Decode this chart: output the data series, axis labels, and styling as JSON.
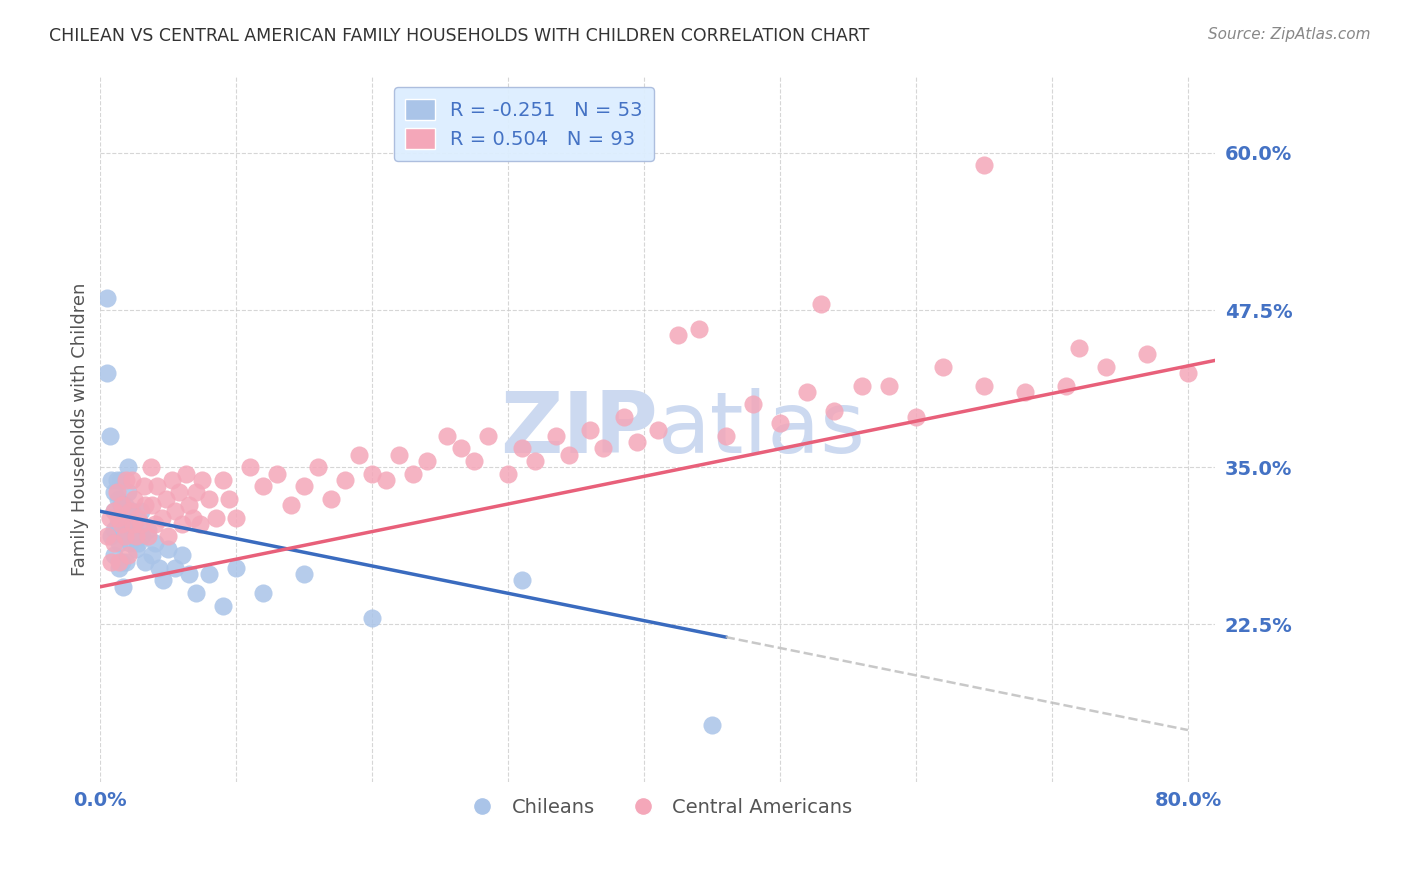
{
  "title": "CHILEAN VS CENTRAL AMERICAN FAMILY HOUSEHOLDS WITH CHILDREN CORRELATION CHART",
  "source": "Source: ZipAtlas.com",
  "ylabel": "Family Households with Children",
  "xlim": [
    0.0,
    0.82
  ],
  "ylim": [
    0.1,
    0.66
  ],
  "yticks": [
    0.225,
    0.35,
    0.475,
    0.6
  ],
  "ytick_labels": [
    "22.5%",
    "35.0%",
    "47.5%",
    "60.0%"
  ],
  "xtick_labels_left": "0.0%",
  "xtick_labels_right": "80.0%",
  "chileans_R": -0.251,
  "chileans_N": 53,
  "central_americans_R": 0.504,
  "central_americans_N": 93,
  "chilean_color": "#aac4e8",
  "central_american_color": "#f4a7b9",
  "chilean_line_color": "#3a6bbf",
  "central_american_line_color": "#e8607a",
  "dashed_line_color": "#bbbbbb",
  "background_color": "#ffffff",
  "grid_color": "#cccccc",
  "tick_label_color": "#4472c4",
  "title_color": "#333333",
  "source_color": "#888888",
  "watermark_color": "#ccd9f0",
  "legend_box_color": "#ddeeff",
  "legend_edge_color": "#aabbdd",
  "ylabel_color": "#555555",
  "bottom_legend_label_color": "#555555",
  "ca_bottom_label_color": "#e8607a",
  "ch_line_xstart": 0.0,
  "ch_line_xend": 0.46,
  "ch_dash_xend": 0.8,
  "ca_line_xstart": 0.0,
  "ca_line_xend": 0.82,
  "ch_line_ystart": 0.315,
  "ch_line_yend": 0.215,
  "ca_line_ystart": 0.255,
  "ca_line_yend": 0.435,
  "chileans_x": [
    0.005,
    0.005,
    0.007,
    0.008,
    0.008,
    0.01,
    0.01,
    0.01,
    0.01,
    0.012,
    0.013,
    0.013,
    0.014,
    0.014,
    0.015,
    0.015,
    0.016,
    0.016,
    0.017,
    0.018,
    0.018,
    0.019,
    0.02,
    0.02,
    0.021,
    0.022,
    0.023,
    0.024,
    0.025,
    0.026,
    0.027,
    0.028,
    0.03,
    0.031,
    0.033,
    0.035,
    0.038,
    0.04,
    0.043,
    0.046,
    0.05,
    0.055,
    0.06,
    0.065,
    0.07,
    0.08,
    0.09,
    0.1,
    0.12,
    0.15,
    0.2,
    0.31,
    0.45
  ],
  "chileans_y": [
    0.485,
    0.425,
    0.375,
    0.34,
    0.295,
    0.33,
    0.315,
    0.3,
    0.28,
    0.34,
    0.325,
    0.305,
    0.29,
    0.27,
    0.34,
    0.32,
    0.3,
    0.275,
    0.255,
    0.32,
    0.3,
    0.275,
    0.35,
    0.33,
    0.31,
    0.29,
    0.315,
    0.295,
    0.305,
    0.285,
    0.31,
    0.29,
    0.315,
    0.295,
    0.275,
    0.3,
    0.28,
    0.29,
    0.27,
    0.26,
    0.285,
    0.27,
    0.28,
    0.265,
    0.25,
    0.265,
    0.24,
    0.27,
    0.25,
    0.265,
    0.23,
    0.26,
    0.145
  ],
  "central_americans_x": [
    0.005,
    0.007,
    0.008,
    0.01,
    0.01,
    0.012,
    0.013,
    0.014,
    0.015,
    0.016,
    0.018,
    0.019,
    0.02,
    0.022,
    0.023,
    0.024,
    0.025,
    0.026,
    0.028,
    0.03,
    0.032,
    0.033,
    0.035,
    0.037,
    0.038,
    0.04,
    0.042,
    0.045,
    0.048,
    0.05,
    0.053,
    0.055,
    0.058,
    0.06,
    0.063,
    0.065,
    0.068,
    0.07,
    0.073,
    0.075,
    0.08,
    0.085,
    0.09,
    0.095,
    0.1,
    0.11,
    0.12,
    0.13,
    0.14,
    0.15,
    0.16,
    0.17,
    0.18,
    0.19,
    0.2,
    0.21,
    0.22,
    0.23,
    0.24,
    0.255,
    0.265,
    0.275,
    0.285,
    0.3,
    0.31,
    0.32,
    0.335,
    0.345,
    0.36,
    0.37,
    0.385,
    0.395,
    0.41,
    0.425,
    0.44,
    0.46,
    0.48,
    0.5,
    0.52,
    0.54,
    0.56,
    0.58,
    0.6,
    0.62,
    0.65,
    0.68,
    0.71,
    0.74,
    0.77,
    0.8,
    0.53,
    0.72,
    0.65
  ],
  "central_americans_y": [
    0.295,
    0.31,
    0.275,
    0.315,
    0.29,
    0.33,
    0.31,
    0.275,
    0.305,
    0.32,
    0.295,
    0.34,
    0.28,
    0.315,
    0.34,
    0.305,
    0.325,
    0.295,
    0.31,
    0.305,
    0.335,
    0.32,
    0.295,
    0.35,
    0.32,
    0.305,
    0.335,
    0.31,
    0.325,
    0.295,
    0.34,
    0.315,
    0.33,
    0.305,
    0.345,
    0.32,
    0.31,
    0.33,
    0.305,
    0.34,
    0.325,
    0.31,
    0.34,
    0.325,
    0.31,
    0.35,
    0.335,
    0.345,
    0.32,
    0.335,
    0.35,
    0.325,
    0.34,
    0.36,
    0.345,
    0.34,
    0.36,
    0.345,
    0.355,
    0.375,
    0.365,
    0.355,
    0.375,
    0.345,
    0.365,
    0.355,
    0.375,
    0.36,
    0.38,
    0.365,
    0.39,
    0.37,
    0.38,
    0.455,
    0.46,
    0.375,
    0.4,
    0.385,
    0.41,
    0.395,
    0.415,
    0.415,
    0.39,
    0.43,
    0.415,
    0.41,
    0.415,
    0.43,
    0.44,
    0.425,
    0.48,
    0.445,
    0.59
  ]
}
